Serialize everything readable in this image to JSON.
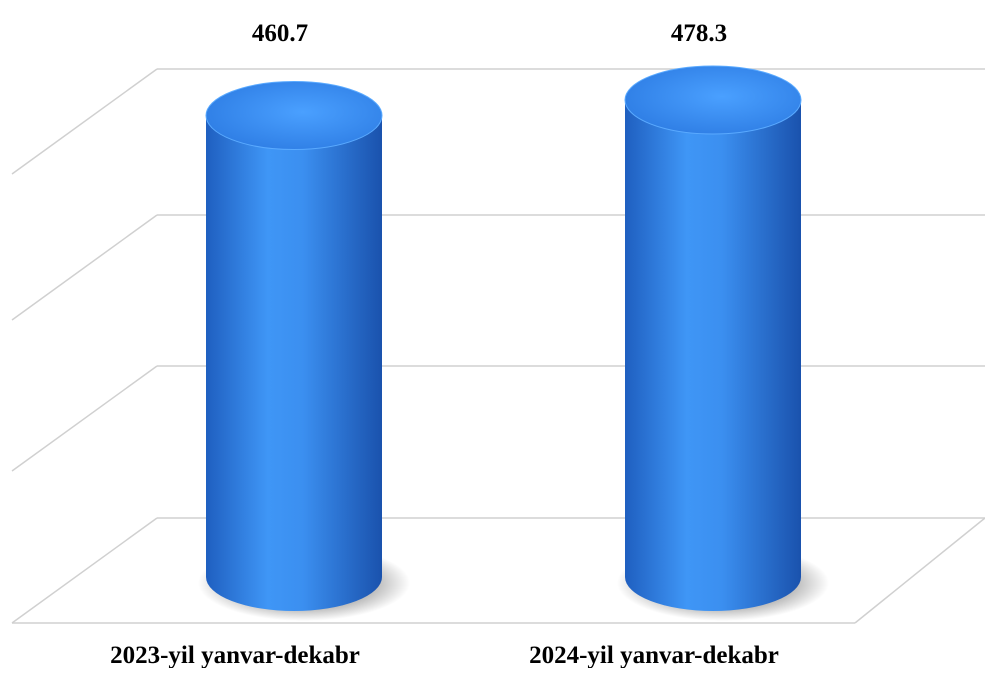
{
  "chart_data": {
    "type": "bar",
    "style": "3d-cylinder",
    "title": "",
    "xlabel": "",
    "ylabel": "",
    "categories": [
      "2023-yil yanvar-dekabr",
      "2024-yil yanvar-dekabr"
    ],
    "series": [
      {
        "values": [
          460.7,
          478.3
        ],
        "color": "#2f7fe0"
      }
    ],
    "data_labels": [
      "460.7",
      "478.3"
    ],
    "grid": true,
    "legend": "none",
    "axis_visible": false
  }
}
